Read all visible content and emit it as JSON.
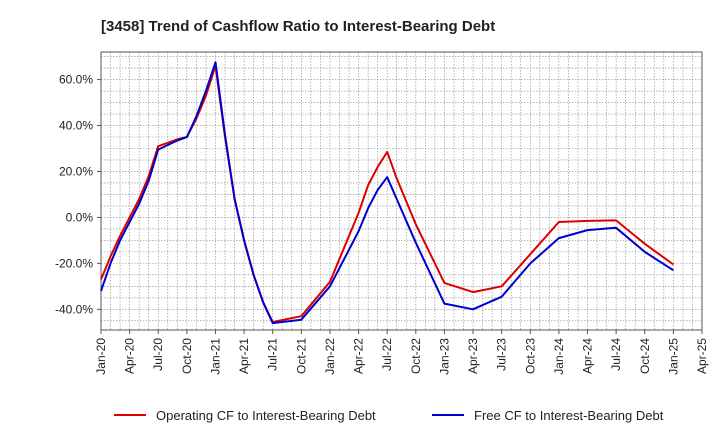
{
  "chart_data": {
    "type": "line",
    "title": "[3458]  Trend of Cashflow Ratio to Interest-Bearing Debt",
    "xlabel": "",
    "ylabel": "",
    "x_tick_labels": [
      "Jan-20",
      "Apr-20",
      "Jul-20",
      "Oct-20",
      "Jan-21",
      "Apr-21",
      "Jul-21",
      "Oct-21",
      "Jan-22",
      "Apr-22",
      "Jul-22",
      "Oct-22",
      "Jan-23",
      "Apr-23",
      "Jul-23",
      "Oct-23",
      "Jan-24",
      "Apr-24",
      "Jul-24",
      "Oct-24",
      "Jan-25",
      "Apr-25"
    ],
    "y_tick_labels": [
      "-40.0%",
      "-20.0%",
      "0.0%",
      "20.0%",
      "40.0%",
      "60.0%"
    ],
    "y_ticks": [
      -40,
      -20,
      0,
      20,
      40,
      60
    ],
    "ylim": [
      -49,
      72
    ],
    "grid": true,
    "legend_position": "bottom",
    "series": [
      {
        "name": "Operating CF to Interest-Bearing Debt",
        "color": "#dd0000",
        "points": [
          [
            "Jan-20",
            -27
          ],
          [
            "Feb-20",
            -17
          ],
          [
            "Mar-20",
            -8
          ],
          [
            "Apr-20",
            0
          ],
          [
            "May-20",
            8
          ],
          [
            "Jun-20",
            18
          ],
          [
            "Jul-20",
            31
          ],
          [
            "Aug-20",
            32.5
          ],
          [
            "Sep-20",
            34
          ],
          [
            "Oct-20",
            35
          ],
          [
            "Nov-20",
            43
          ],
          [
            "Dec-20",
            53
          ],
          [
            "Jan-21",
            66
          ],
          [
            "Feb-21",
            35
          ],
          [
            "Mar-21",
            8
          ],
          [
            "Apr-21",
            -10
          ],
          [
            "May-21",
            -25
          ],
          [
            "Jun-21",
            -37
          ],
          [
            "Jul-21",
            -45.5
          ],
          [
            "Oct-21",
            -43
          ],
          [
            "Jan-22",
            -28
          ],
          [
            "Apr-22",
            2
          ],
          [
            "May-22",
            14
          ],
          [
            "Jun-22",
            22
          ],
          [
            "Jul-22",
            28.5
          ],
          [
            "Aug-22",
            17
          ],
          [
            "Oct-22",
            -3
          ],
          [
            "Jan-23",
            -28.5
          ],
          [
            "Apr-23",
            -32.5
          ],
          [
            "Jul-23",
            -30
          ],
          [
            "Oct-23",
            -16
          ],
          [
            "Jan-24",
            -2
          ],
          [
            "Apr-24",
            -1.5
          ],
          [
            "Jul-24",
            -1.3
          ],
          [
            "Oct-24",
            -11.5
          ],
          [
            "Jan-25",
            -20.5
          ]
        ]
      },
      {
        "name": "Free CF to Interest-Bearing Debt",
        "color": "#0000cc",
        "points": [
          [
            "Jan-20",
            -32
          ],
          [
            "Feb-20",
            -20
          ],
          [
            "Mar-20",
            -10
          ],
          [
            "Apr-20",
            -2
          ],
          [
            "May-20",
            6
          ],
          [
            "Jun-20",
            16
          ],
          [
            "Jul-20",
            29.5
          ],
          [
            "Aug-20",
            31.5
          ],
          [
            "Sep-20",
            33.5
          ],
          [
            "Oct-20",
            35
          ],
          [
            "Nov-20",
            44
          ],
          [
            "Dec-20",
            55
          ],
          [
            "Jan-21",
            67.5
          ],
          [
            "Feb-21",
            36
          ],
          [
            "Mar-21",
            8
          ],
          [
            "Apr-21",
            -10
          ],
          [
            "May-21",
            -25
          ],
          [
            "Jun-21",
            -37
          ],
          [
            "Jul-21",
            -46
          ],
          [
            "Oct-21",
            -44.5
          ],
          [
            "Jan-22",
            -30
          ],
          [
            "Apr-22",
            -6
          ],
          [
            "May-22",
            4
          ],
          [
            "Jun-22",
            12
          ],
          [
            "Jul-22",
            17.5
          ],
          [
            "Aug-22",
            8
          ],
          [
            "Oct-22",
            -11
          ],
          [
            "Jan-23",
            -37.5
          ],
          [
            "Apr-23",
            -40
          ],
          [
            "Jul-23",
            -34.5
          ],
          [
            "Oct-23",
            -20
          ],
          [
            "Jan-24",
            -9
          ],
          [
            "Apr-24",
            -5.5
          ],
          [
            "Jul-24",
            -4.5
          ],
          [
            "Oct-24",
            -15
          ],
          [
            "Jan-25",
            -23
          ]
        ]
      }
    ]
  }
}
